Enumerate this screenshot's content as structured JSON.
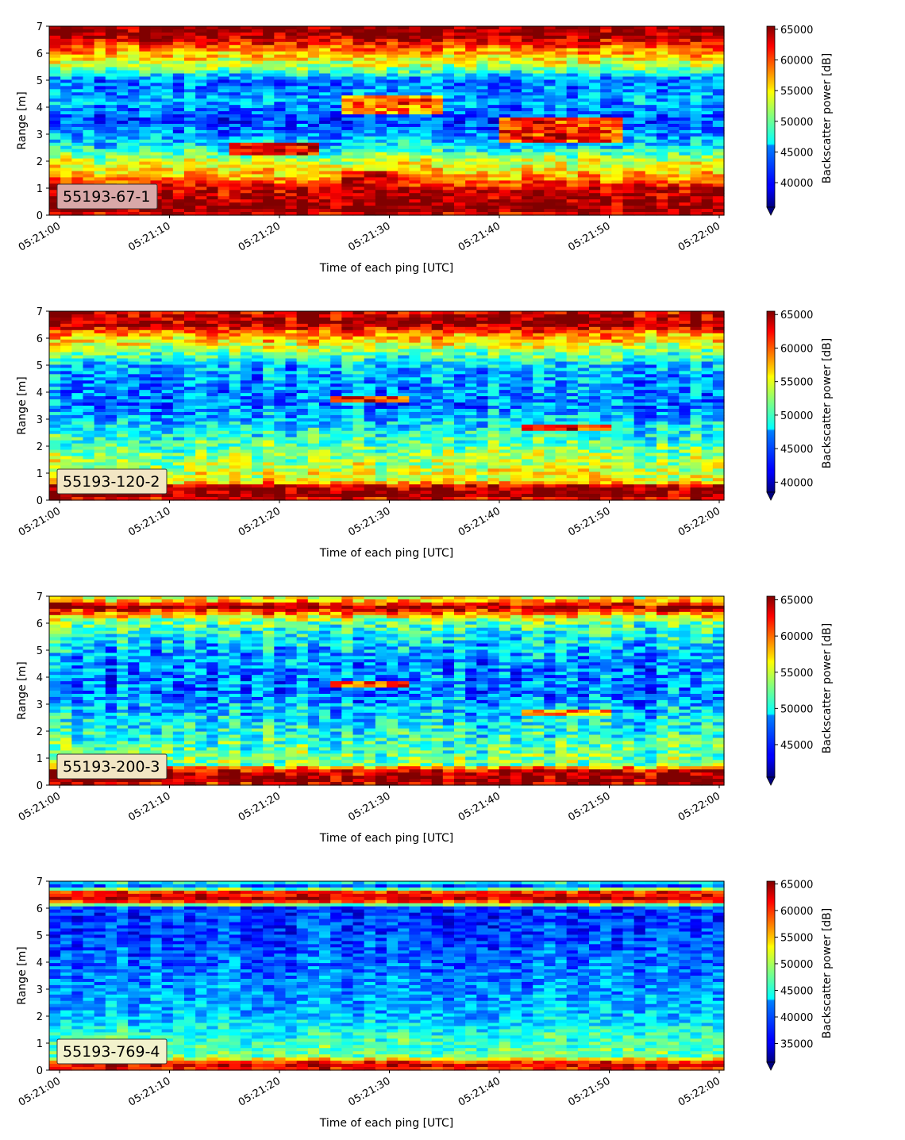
{
  "chart_data": [
    {
      "type": "heatmap",
      "label_box": "55193-67-1",
      "xlabel": "Time of each ping [UTC]",
      "ylabel": "Range [m]",
      "x_ticks": [
        "05:21:00",
        "05:21:10",
        "05:21:20",
        "05:21:30",
        "05:21:40",
        "05:21:50",
        "05:22:00"
      ],
      "y_ticks": [
        "0",
        "1",
        "2",
        "3",
        "4",
        "5",
        "6",
        "7"
      ],
      "ylim": [
        0,
        7
      ],
      "colorbar": {
        "label": "Backscatter power [dB]",
        "ticks": [
          "40000",
          "45000",
          "50000",
          "55000",
          "60000",
          "65000"
        ],
        "range": [
          36000,
          65500
        ],
        "extend": "min",
        "colormap": "jet"
      },
      "label_box_color": "#d9a8a8",
      "profile_m": [
        {
          "range": 0.0,
          "value": 62000
        },
        {
          "range": 0.2,
          "value": 65500
        },
        {
          "range": 1.0,
          "value": 63000
        },
        {
          "range": 1.4,
          "value": 57000
        },
        {
          "range": 2.0,
          "value": 53000
        },
        {
          "range": 2.6,
          "value": 46000
        },
        {
          "range": 3.5,
          "value": 41500
        },
        {
          "range": 4.2,
          "value": 45000
        },
        {
          "range": 5.0,
          "value": 43000
        },
        {
          "range": 5.5,
          "value": 52000
        },
        {
          "range": 6.2,
          "value": 59000
        },
        {
          "range": 6.6,
          "value": 64500
        },
        {
          "range": 7.0,
          "value": 65500
        }
      ],
      "features": [
        {
          "t0": 15,
          "t1": 23,
          "r0": 2.2,
          "r1": 2.7,
          "value": 62000
        },
        {
          "t0": 25,
          "t1": 35,
          "r0": 3.7,
          "r1": 4.4,
          "value": 58000
        },
        {
          "t0": 40,
          "t1": 51,
          "r0": 2.7,
          "r1": 3.6,
          "value": 60500
        },
        {
          "t0": 25,
          "t1": 31,
          "r0": 1.1,
          "r1": 1.6,
          "value": 63500
        }
      ]
    },
    {
      "type": "heatmap",
      "label_box": "55193-120-2",
      "xlabel": "Time of each ping [UTC]",
      "ylabel": "Range [m]",
      "x_ticks": [
        "05:21:00",
        "05:21:10",
        "05:21:20",
        "05:21:30",
        "05:21:40",
        "05:21:50",
        "05:22:00"
      ],
      "y_ticks": [
        "0",
        "1",
        "2",
        "3",
        "4",
        "5",
        "6",
        "7"
      ],
      "ylim": [
        0,
        7
      ],
      "colorbar": {
        "label": "Backscatter power [dB]",
        "ticks": [
          "40000",
          "45000",
          "50000",
          "55000",
          "60000",
          "65000"
        ],
        "range": [
          38500,
          65500
        ],
        "extend": "min",
        "colormap": "jet"
      },
      "label_box_color": "#f2e6c4",
      "profile_m": [
        {
          "range": 0.0,
          "value": 60000
        },
        {
          "range": 0.15,
          "value": 65500
        },
        {
          "range": 0.5,
          "value": 64000
        },
        {
          "range": 0.7,
          "value": 55000
        },
        {
          "range": 1.5,
          "value": 53000
        },
        {
          "range": 2.5,
          "value": 49000
        },
        {
          "range": 3.5,
          "value": 45000
        },
        {
          "range": 4.5,
          "value": 46000
        },
        {
          "range": 5.0,
          "value": 47000
        },
        {
          "range": 5.7,
          "value": 54000
        },
        {
          "range": 6.2,
          "value": 59000
        },
        {
          "range": 6.5,
          "value": 65000
        },
        {
          "range": 7.0,
          "value": 63000
        }
      ],
      "features": [
        {
          "t0": 24,
          "t1": 32,
          "r0": 3.6,
          "r1": 3.9,
          "value": 61000
        },
        {
          "t0": 42,
          "t1": 50,
          "r0": 2.6,
          "r1": 2.8,
          "value": 60000
        }
      ]
    },
    {
      "type": "heatmap",
      "label_box": "55193-200-3",
      "xlabel": "Time of each ping [UTC]",
      "ylabel": "Range [m]",
      "x_ticks": [
        "05:21:00",
        "05:21:10",
        "05:21:20",
        "05:21:30",
        "05:21:40",
        "05:21:50",
        "05:22:00"
      ],
      "y_ticks": [
        "0",
        "1",
        "2",
        "3",
        "4",
        "5",
        "6",
        "7"
      ],
      "ylim": [
        0,
        7
      ],
      "colorbar": {
        "label": "Backscatter power [dB]",
        "ticks": [
          "45000",
          "50000",
          "55000",
          "60000",
          "65000"
        ],
        "range": [
          40500,
          65500
        ],
        "extend": "min",
        "colormap": "jet"
      },
      "label_box_color": "#f2e6c4",
      "profile_m": [
        {
          "range": 0.0,
          "value": 62000
        },
        {
          "range": 0.15,
          "value": 65500
        },
        {
          "range": 0.55,
          "value": 63500
        },
        {
          "range": 0.75,
          "value": 53000
        },
        {
          "range": 1.5,
          "value": 51500
        },
        {
          "range": 2.5,
          "value": 49000
        },
        {
          "range": 3.5,
          "value": 46500
        },
        {
          "range": 4.5,
          "value": 47000
        },
        {
          "range": 5.5,
          "value": 49500
        },
        {
          "range": 6.1,
          "value": 53000
        },
        {
          "range": 6.6,
          "value": 65000
        },
        {
          "range": 6.85,
          "value": 57000
        },
        {
          "range": 7.0,
          "value": 55000
        }
      ],
      "features": [
        {
          "t0": 24,
          "t1": 32,
          "r0": 3.6,
          "r1": 3.9,
          "value": 60000
        },
        {
          "t0": 42,
          "t1": 50,
          "r0": 2.6,
          "r1": 2.8,
          "value": 58000
        }
      ]
    },
    {
      "type": "heatmap",
      "label_box": "55193-769-4",
      "xlabel": "Time of each ping [UTC]",
      "ylabel": "Range [m]",
      "x_ticks": [
        "05:21:00",
        "05:21:10",
        "05:21:20",
        "05:21:30",
        "05:21:40",
        "05:21:50",
        "05:22:00"
      ],
      "y_ticks": [
        "0",
        "1",
        "2",
        "3",
        "4",
        "5",
        "6",
        "7"
      ],
      "ylim": [
        0,
        7
      ],
      "colorbar": {
        "label": "Backscatter power [dB]",
        "ticks": [
          "35000",
          "40000",
          "45000",
          "50000",
          "55000",
          "60000",
          "65000"
        ],
        "range": [
          31500,
          65500
        ],
        "extend": "min",
        "colormap": "jet"
      },
      "label_box_color": "#f2f2cc",
      "profile_m": [
        {
          "range": 0.0,
          "value": 56000
        },
        {
          "range": 0.1,
          "value": 64000
        },
        {
          "range": 0.3,
          "value": 60000
        },
        {
          "range": 0.5,
          "value": 48000
        },
        {
          "range": 1.2,
          "value": 46000
        },
        {
          "range": 2.0,
          "value": 42500
        },
        {
          "range": 3.0,
          "value": 41000
        },
        {
          "range": 4.0,
          "value": 39500
        },
        {
          "range": 5.0,
          "value": 38000
        },
        {
          "range": 6.0,
          "value": 37500
        },
        {
          "range": 6.3,
          "value": 64500
        },
        {
          "range": 6.6,
          "value": 60000
        },
        {
          "range": 6.8,
          "value": 38000
        },
        {
          "range": 7.0,
          "value": 47000
        }
      ],
      "features": []
    }
  ]
}
